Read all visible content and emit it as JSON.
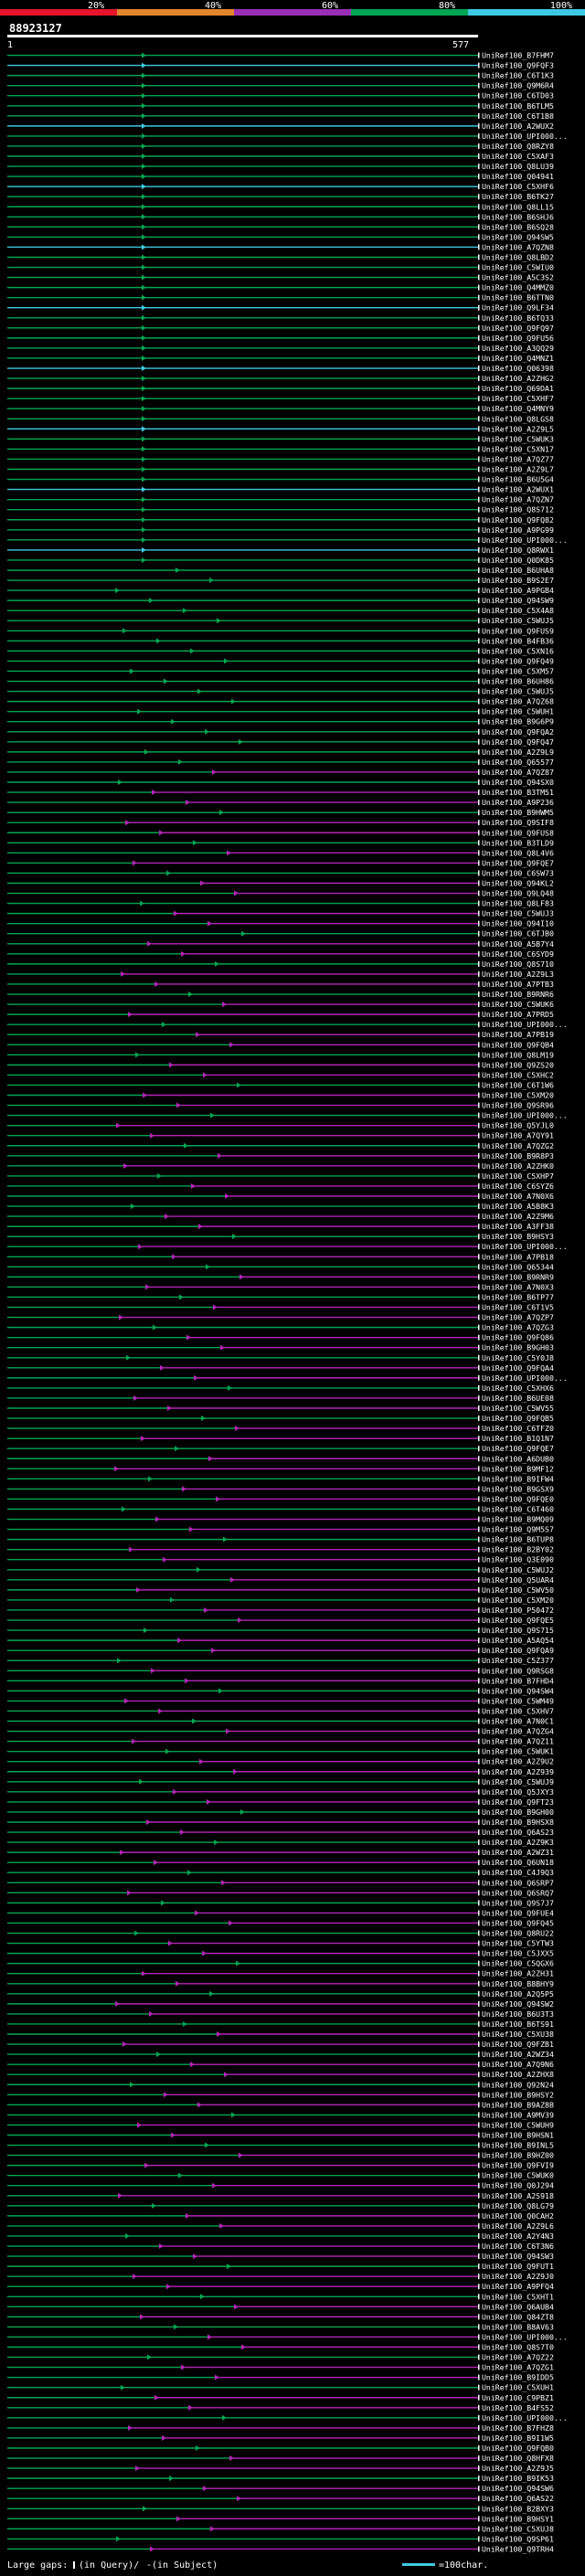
{
  "chart_data": {
    "type": "alignment-map",
    "title": "88923127",
    "query_length": 577,
    "x_axis": {
      "start_label": "1",
      "end_label": "577"
    },
    "identity_scale": {
      "labels": [
        "20%",
        "40%",
        "60%",
        "80%",
        "100%"
      ],
      "colors": [
        "#e6152b",
        "#e3852d",
        "#9a2fb6",
        "#00a651",
        "#3ec9e3"
      ]
    },
    "legend": {
      "large_gaps_text": "Large gaps: ",
      "gap_query_text": "(in Query)/",
      "gap_subject_text": " (in Subject)",
      "scale_text": "=100char."
    },
    "hits": [
      "UniRef100_B7FHM7",
      "UniRef100_Q9FQF3",
      "UniRef100_C6T1K3",
      "UniRef100_Q9M6R4",
      "UniRef100_C6TD03",
      "UniRef100_B6TLM5",
      "UniRef100_C6T1B8",
      "UniRef100_A2WUX2",
      "UniRef100_UPI000...",
      "UniRef100_Q8RZY8",
      "UniRef100_C5XAF3",
      "UniRef100_Q8LU39",
      "UniRef100_Q04941",
      "UniRef100_C5XHF6",
      "UniRef100_B6TK27",
      "UniRef100_Q8LL15",
      "UniRef100_B6SHJ6",
      "UniRef100_B6SQ28",
      "UniRef100_Q94SW5",
      "UniRef100_A7QZN8",
      "UniRef100_Q8LBD2",
      "UniRef100_C5WIU0",
      "UniRef100_A5C3S2",
      "UniRef100_Q4MMZ0",
      "UniRef100_B6TTN0",
      "UniRef100_Q9LF34",
      "UniRef100_B6TQ33",
      "UniRef100_Q9FQ97",
      "UniRef100_Q9FU56",
      "UniRef100_A3QQ29",
      "UniRef100_Q4MNZ1",
      "UniRef100_Q06398",
      "UniRef100_A2ZHG2",
      "UniRef100_Q69DA1",
      "UniRef100_C5XHF7",
      "UniRef100_Q4MNY9",
      "UniRef100_Q8LGS8",
      "UniRef100_A2Z9L5",
      "UniRef100_C5WUK3",
      "UniRef100_C5XN17",
      "UniRef100_A7QZ77",
      "UniRef100_A2Z9L7",
      "UniRef100_B6U5G4",
      "UniRef100_A2WUX1",
      "UniRef100_A7QZN7",
      "UniRef100_Q8S712",
      "UniRef100_Q9FQ82",
      "UniRef100_A9PG99",
      "UniRef100_UPI000...",
      "UniRef100_Q8RWX1",
      "UniRef100_Q0DK85",
      "UniRef100_B6UHA8",
      "UniRef100_B9S2E7",
      "UniRef100_A9PGB4",
      "UniRef100_Q94SW9",
      "UniRef100_C5X4A8",
      "UniRef100_C5WUJ5",
      "UniRef100_Q9FUS9",
      "UniRef100_B4FB36",
      "UniRef100_C5XN16",
      "UniRef100_Q9FQ49",
      "UniRef100_C5XM57",
      "UniRef100_B6UH86",
      "UniRef100_C5WUJ5",
      "UniRef100_A7QZ68",
      "UniRef100_C5WUH1",
      "UniRef100_B9G6P9",
      "UniRef100_Q9FQA2",
      "UniRef100_Q9FQ47",
      "UniRef100_A2Z9L9",
      "UniRef100_Q65577",
      "UniRef100_A7QZ87",
      "UniRef100_Q94SX0",
      "UniRef100_B3TM51",
      "UniRef100_A9P236",
      "UniRef100_B9HWM5",
      "UniRef100_Q9SIF8",
      "UniRef100_Q9FUS8",
      "UniRef100_B3TLD9",
      "UniRef100_Q8L4V6",
      "UniRef100_Q9FQE7",
      "UniRef100_C6SW73",
      "UniRef100_Q94KL2",
      "UniRef100_Q9LQ48",
      "UniRef100_Q8LF83",
      "UniRef100_C5WUJ3",
      "UniRef100_Q94I10",
      "UniRef100_C6TJB0",
      "UniRef100_A5B7Y4",
      "UniRef100_C6SYD9",
      "UniRef100_Q8S710",
      "UniRef100_A2Z9L3",
      "UniRef100_A7PTB3",
      "UniRef100_B9RNR6",
      "UniRef100_C5WUK6",
      "UniRef100_A7PRD5",
      "UniRef100_UPI000...",
      "UniRef100_A7PB19",
      "UniRef100_Q9FQB4",
      "UniRef100_Q8LM19",
      "UniRef100_Q9ZS20",
      "UniRef100_C5XHC2",
      "UniRef100_C6T1W6",
      "UniRef100_C5XM20",
      "UniRef100_Q9SR96",
      "UniRef100_UPI000...",
      "UniRef100_Q5YJL0",
      "UniRef100_A7QY91",
      "UniRef100_A7QZG2",
      "UniRef100_B9R8P3",
      "UniRef100_A2ZHK0",
      "UniRef100_C5XHP7",
      "UniRef100_C6SYZ6",
      "UniRef100_A7N0X6",
      "UniRef100_A5B8K3",
      "UniRef100_A2Z9M6",
      "UniRef100_A3FF38",
      "UniRef100_B9HSY3",
      "UniRef100_UPI000...",
      "UniRef100_A7PB18",
      "UniRef100_Q65344",
      "UniRef100_B9RNR9",
      "UniRef100_A7N0X3",
      "UniRef100_B6TP77",
      "UniRef100_C6T1V5",
      "UniRef100_A7QZP7",
      "UniRef100_A7QZG3",
      "UniRef100_Q9FQ86",
      "UniRef100_B9GH03",
      "UniRef100_C5Y0J8",
      "UniRef100_Q9FQA4",
      "UniRef100_UPI000...",
      "UniRef100_C5XHX6",
      "UniRef100_B6UE08",
      "UniRef100_C5WV55",
      "UniRef100_Q9FQB5",
      "UniRef100_C6TFZ0",
      "UniRef100_B1Q1N7",
      "UniRef100_Q9FQE7",
      "UniRef100_A6DUB0",
      "UniRef100_B9MF12",
      "UniRef100_B9IFW4",
      "UniRef100_B9GSX9",
      "UniRef100_Q9FQE0",
      "UniRef100_C6T460",
      "UniRef100_B9MQ09",
      "UniRef100_Q9M5S7",
      "UniRef100_B6TUP8",
      "UniRef100_B2BY02",
      "UniRef100_Q3E090",
      "UniRef100_C5WUJ2",
      "UniRef100_Q5UAR4",
      "UniRef100_C5WV50",
      "UniRef100_C5XM20",
      "UniRef100_P50472",
      "UniRef100_Q9FQE5",
      "UniRef100_Q9S715",
      "UniRef100_A5AQ54",
      "UniRef100_Q9FQA9",
      "UniRef100_C5Z377",
      "UniRef100_Q9RSG8",
      "UniRef100_B7FHD4",
      "UniRef100_Q94SW4",
      "UniRef100_C5WM49",
      "UniRef100_C5XHV7",
      "UniRef100_A7N0C1",
      "UniRef100_A7QZG4",
      "UniRef100_A7QZ11",
      "UniRef100_C5WUK1",
      "UniRef100_A2Z9U2",
      "UniRef100_A2Z939",
      "UniRef100_C5WUJ9",
      "UniRef100_Q5JXY3",
      "UniRef100_Q9FT23",
      "UniRef100_B9GH00",
      "UniRef100_B9HSX8",
      "UniRef100_Q6AS23",
      "UniRef100_A2Z9K3",
      "UniRef100_A2WZ31",
      "UniRef100_Q6UN18",
      "UniRef100_C4J9Q3",
      "UniRef100_Q6SRP7",
      "UniRef100_Q6SRQ7",
      "UniRef100_Q9S7J7",
      "UniRef100_Q9FUE4",
      "UniRef100_Q9FQ45",
      "UniRef100_Q8RU22",
      "UniRef100_C5YTW3",
      "UniRef100_C5JXX5",
      "UniRef100_C5QGX6",
      "UniRef100_A2ZH31",
      "UniRef100_B8BHY9",
      "UniRef100_A2Q5P5",
      "UniRef100_Q94SW2",
      "UniRef100_B6U3T3",
      "UniRef100_B6TS91",
      "UniRef100_C5XU38",
      "UniRef100_Q9FZB1",
      "UniRef100_A2WZ34",
      "UniRef100_A7Q9N6",
      "UniRef100_A2ZHX8",
      "UniRef100_Q92N24",
      "UniRef100_B9HSY2",
      "UniRef100_B9AZ8B",
      "UniRef100_A9MV39",
      "UniRef100_C5WUH9",
      "UniRef100_B9HSN1",
      "UniRef100_B9INL5",
      "UniRef100_B9HZ00",
      "UniRef100_Q9FVI9",
      "UniRef100_C5WUK0",
      "UniRef100_Q0J294",
      "UniRef100_A2S918",
      "UniRef100_Q8LG79",
      "UniRef100_Q0CAH2",
      "UniRef100_A2Z9L6",
      "UniRef100_A2Y4N3",
      "UniRef100_C6T3N6",
      "UniRef100_Q94SW3",
      "UniRef100_Q9FUT1",
      "UniRef100_A2Z9J0",
      "UniRef100_A9PFQ4",
      "UniRef100_C5XHT1",
      "UniRef100_Q6AUB4",
      "UniRef100_Q84ZT8",
      "UniRef100_B8AV63",
      "UniRef100_UPI000...",
      "UniRef100_Q8S7T0",
      "UniRef100_A7QZ22",
      "UniRef100_A7QZG1",
      "UniRef100_B9IDD5",
      "UniRef100_C5XUH1",
      "UniRef100_C9PBZ1",
      "UniRef100_B4FS52",
      "UniRef100_UPI000...",
      "UniRef100_B7FHZ8",
      "UniRef100_B9I1W5",
      "UniRef100_Q9FQB0",
      "UniRef100_Q8HFX8",
      "UniRef100_A2Z9J5",
      "UniRef100_B9IK53",
      "UniRef100_Q94SW6",
      "UniRef100_Q6AS22",
      "UniRef100_B2BXY3",
      "UniRef100_B9HSY1",
      "UniRef100_C5XUJ8",
      "UniRef100_Q9SP61",
      "UniRef100_Q9TRH4"
    ]
  }
}
